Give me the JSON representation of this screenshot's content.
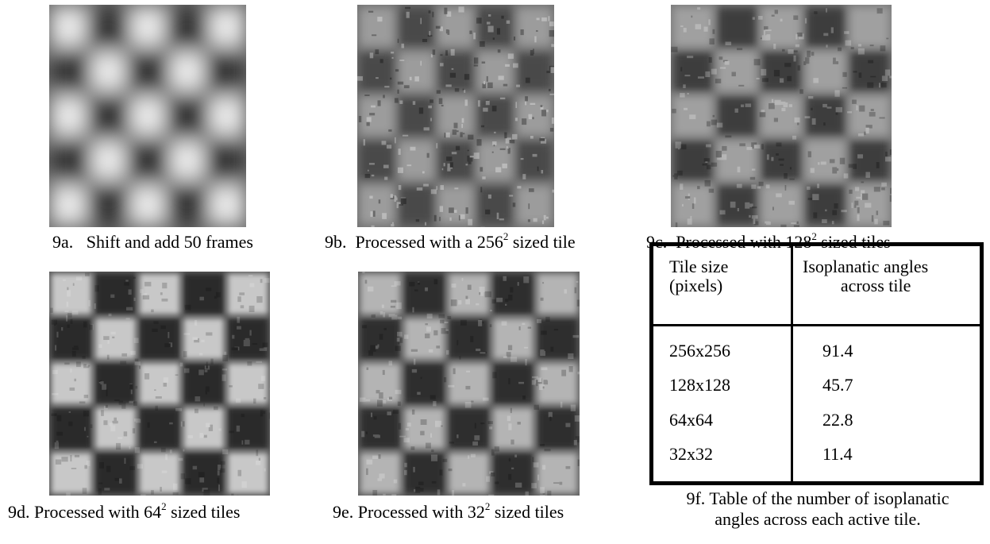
{
  "panels": [
    {
      "id": "9a",
      "prefix": "9a.",
      "text": "Shift and add 50 frames",
      "base": "",
      "exp": "",
      "suffix": ""
    },
    {
      "id": "9b",
      "prefix": "9b.",
      "text": "Processed with a ",
      "base": "256",
      "exp": "2",
      "suffix": " sized tile"
    },
    {
      "id": "9c",
      "prefix": "9c.",
      "text": "Processed with ",
      "base": "128",
      "exp": "2",
      "suffix": " sized tiles"
    },
    {
      "id": "9d",
      "prefix": "9d.",
      "text": "Processed with ",
      "base": "64",
      "exp": "2",
      "suffix": " sized tiles"
    },
    {
      "id": "9e",
      "prefix": "9e.",
      "text": "Processed with ",
      "base": "32",
      "exp": "2",
      "suffix": " sized tiles"
    }
  ],
  "table": {
    "header": {
      "col1_line1": "Tile size",
      "col1_line2": "(pixels)",
      "col2_line1": "Isoplanatic angles",
      "col2_line2": "across tile"
    },
    "rows": [
      {
        "size": "256x256",
        "angles": "91.4"
      },
      {
        "size": "128x128",
        "angles": "45.7"
      },
      {
        "size": "64x64",
        "angles": "22.8"
      },
      {
        "size": "32x32",
        "angles": "11.4"
      }
    ],
    "caption_line1": "9f.  Table of the number of isoplanatic",
    "caption_line2": "angles across each active tile."
  }
}
